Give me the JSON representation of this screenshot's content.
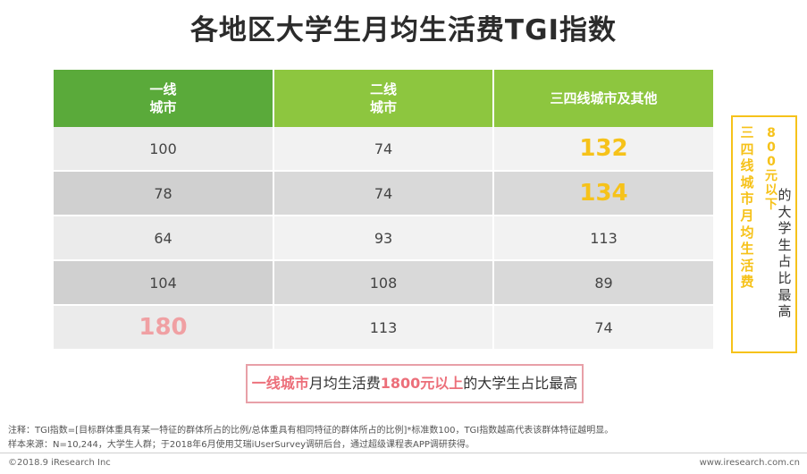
{
  "title": "各地区大学生月均生活费TGI指数",
  "table": {
    "headers": [
      "一线\n城市",
      "二线\n城市",
      "三四线城市及其他"
    ],
    "rows": [
      [
        "100",
        "74",
        "132"
      ],
      [
        "78",
        "74",
        "134"
      ],
      [
        "64",
        "93",
        "113"
      ],
      [
        "104",
        "108",
        "89"
      ],
      [
        "180",
        "113",
        "74"
      ]
    ]
  },
  "side_note": {
    "col1": "三四线城市月均生活费",
    "col2": "800元以下",
    "col3": "的大学生占比最高"
  },
  "bottom_note": {
    "part1": "一线城市",
    "part2": "月均生活费",
    "part3": "1800元以上",
    "part4": "的大学生占比最高"
  },
  "footnotes": {
    "note": "注释：TGI指数=[目标群体重具有某一特征的群体所占的比例/总体重具有相同特征的群体所占的比例]*标准数100，TGI指数越高代表该群体特征越明显。",
    "source": "样本来源：N=10,244，大学生人群；于2018年6月使用艾瑞iUserSurvey调研后台，通过超级课程表APP调研获得。"
  },
  "footer": {
    "copyright": "©2018.9 iResearch Inc",
    "website": "www.iresearch.com.cn"
  },
  "colors": {
    "header_dark_green": "#5aaa3a",
    "header_light_green": "#8dc63f",
    "highlight_yellow": "#f6c21a",
    "highlight_pink": "#f0a0a3"
  }
}
